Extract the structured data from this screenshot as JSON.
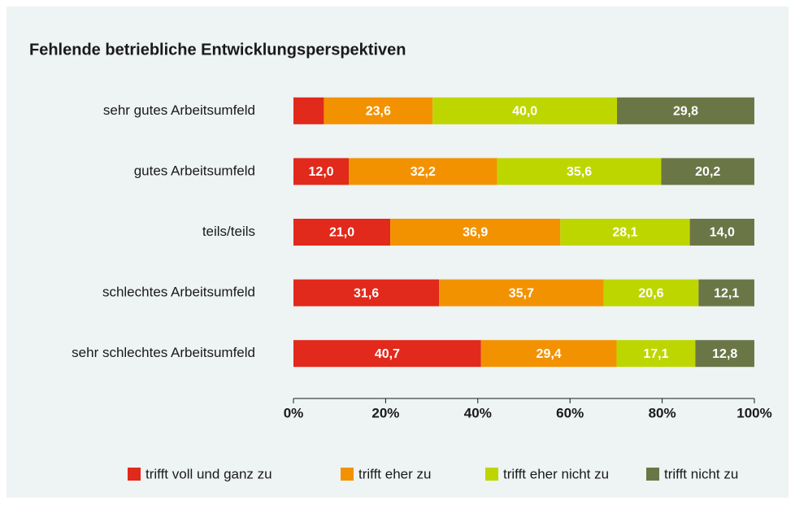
{
  "chart_data": {
    "type": "stacked-bar-horizontal",
    "title": "Fehlende betriebliche Entwicklungsperspektiven",
    "categories": [
      "sehr gutes Arbeitsumfeld",
      "gutes Arbeitsumfeld",
      "teils/teils",
      "schlechtes Arbeitsumfeld",
      "sehr schlechtes Arbeitsumfeld"
    ],
    "series": [
      {
        "name": "trifft voll und ganz zu",
        "color": "#e1291c",
        "values": [
          6.6,
          12.0,
          21.0,
          31.6,
          40.7
        ],
        "value_labels": [
          null,
          "12,0",
          "21,0",
          "31,6",
          "40,7"
        ]
      },
      {
        "name": "trifft eher zu",
        "color": "#f39200",
        "values": [
          23.6,
          32.2,
          36.9,
          35.7,
          29.4
        ],
        "value_labels": [
          "23,6",
          "32,2",
          "36,9",
          "35,7",
          "29,4"
        ]
      },
      {
        "name": "trifft eher nicht zu",
        "color": "#bed600",
        "values": [
          40.0,
          35.6,
          28.1,
          20.6,
          17.1
        ],
        "value_labels": [
          "40,0",
          "35,6",
          "28,1",
          "20,6",
          "17,1"
        ]
      },
      {
        "name": "trifft nicht zu",
        "color": "#6b7647",
        "values": [
          29.8,
          20.2,
          14.0,
          12.1,
          12.8
        ],
        "value_labels": [
          "29,8",
          "20,2",
          "14,0",
          "12,1",
          "12,8"
        ]
      }
    ],
    "xlim": [
      0,
      100
    ],
    "xticks": [
      {
        "value": 0,
        "label": "0%"
      },
      {
        "value": 20,
        "label": "20%"
      },
      {
        "value": 40,
        "label": "40%"
      },
      {
        "value": 60,
        "label": "60%"
      },
      {
        "value": 80,
        "label": "80%"
      },
      {
        "value": 100,
        "label": "100%"
      }
    ],
    "legend": "bottom"
  }
}
